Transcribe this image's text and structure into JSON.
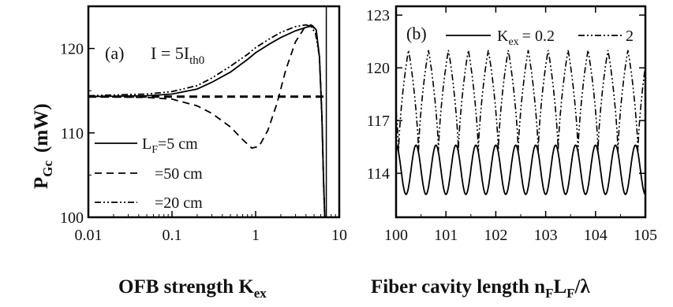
{
  "chart_data": [
    {
      "panel": "(a)",
      "type": "line",
      "annotation": "I = 5I",
      "annotation_sub": "th0",
      "xlabel": "OFB strength K",
      "xlabel_sub": "ex",
      "ylabel": "P",
      "ylabel_sub": "Gc",
      "ylabel_unit": "(mW)",
      "xscale": "log",
      "xlim": [
        0.01,
        10
      ],
      "ylim": [
        100,
        125
      ],
      "xticks": [
        0.01,
        0.1,
        1,
        10
      ],
      "xtick_labels": [
        "0.01",
        "0.1",
        "1",
        "10"
      ],
      "yticks": [
        100,
        110,
        120
      ],
      "ytick_labels": [
        "100",
        "110",
        "120"
      ],
      "grid": false,
      "legend_position": "bottom-left",
      "legend_prefix": "L",
      "legend_prefix_sub": "F",
      "series": [
        {
          "name": "=5 cm",
          "style": "solid",
          "x": [
            0.01,
            0.05,
            0.1,
            0.2,
            0.3,
            0.5,
            0.8,
            1.0,
            1.5,
            2.0,
            3.0,
            4.0,
            4.8,
            5.3,
            5.8,
            6.2,
            6.5,
            6.7
          ],
          "y": [
            114.3,
            114.4,
            114.6,
            115.2,
            116.0,
            117.2,
            118.7,
            119.5,
            120.6,
            121.3,
            122.1,
            122.5,
            122.7,
            122.2,
            119.0,
            112.0,
            104.0,
            100.0
          ]
        },
        {
          "name": "=50 cm",
          "style": "dashed",
          "x": [
            0.01,
            0.05,
            0.1,
            0.2,
            0.3,
            0.5,
            0.7,
            0.9,
            1.1,
            1.4,
            1.8,
            2.3,
            3.0,
            3.8,
            4.6,
            5.3,
            5.8,
            6.2,
            6.5,
            6.7
          ],
          "y": [
            114.3,
            114.2,
            114.0,
            113.2,
            112.3,
            110.7,
            109.2,
            108.2,
            108.4,
            110.3,
            113.5,
            117.5,
            120.8,
            122.4,
            122.8,
            122.1,
            119.0,
            112.0,
            104.0,
            100.0
          ]
        },
        {
          "name": "=20 cm",
          "style": "dashdotdot",
          "x": [
            0.01,
            0.05,
            0.1,
            0.2,
            0.3,
            0.5,
            0.8,
            1.0,
            1.5,
            2.0,
            3.0,
            4.0,
            4.6,
            5.2,
            5.8,
            6.2,
            6.5,
            6.7
          ],
          "y": [
            114.4,
            114.6,
            114.9,
            115.6,
            116.5,
            117.9,
            119.3,
            120.1,
            121.2,
            121.9,
            122.6,
            122.8,
            122.6,
            121.8,
            119.0,
            112.0,
            104.0,
            100.0
          ]
        },
        {
          "name": "",
          "style": "thick-dashed",
          "x": [
            0.01,
            6.5
          ],
          "y": [
            114.3,
            114.3
          ]
        }
      ],
      "vertical_line_x": 7.0
    },
    {
      "panel": "(b)",
      "type": "line",
      "xlabel": "Fiber cavity length n",
      "xlabel_parts": [
        "Fiber cavity length n",
        "F",
        "L",
        "F",
        "/λ"
      ],
      "xlim": [
        100,
        105
      ],
      "ylim": [
        111.5,
        123.5
      ],
      "xticks": [
        100,
        101,
        102,
        103,
        104,
        105
      ],
      "xtick_labels": [
        "100",
        "101",
        "102",
        "103",
        "104",
        "105"
      ],
      "yticks": [
        114,
        117,
        120,
        123
      ],
      "ytick_labels": [
        "114",
        "117",
        "120",
        "123"
      ],
      "grid": false,
      "legend_position": "top",
      "legend_prefix": "K",
      "legend_prefix_sub": "ex",
      "series": [
        {
          "name": "= 0.2",
          "style": "solid",
          "min": 112.8,
          "max": 115.6,
          "period": 0.4
        },
        {
          "name": "2",
          "style": "dashdotdot",
          "min": 115.2,
          "max": 121.0,
          "period": 0.4
        }
      ]
    }
  ]
}
